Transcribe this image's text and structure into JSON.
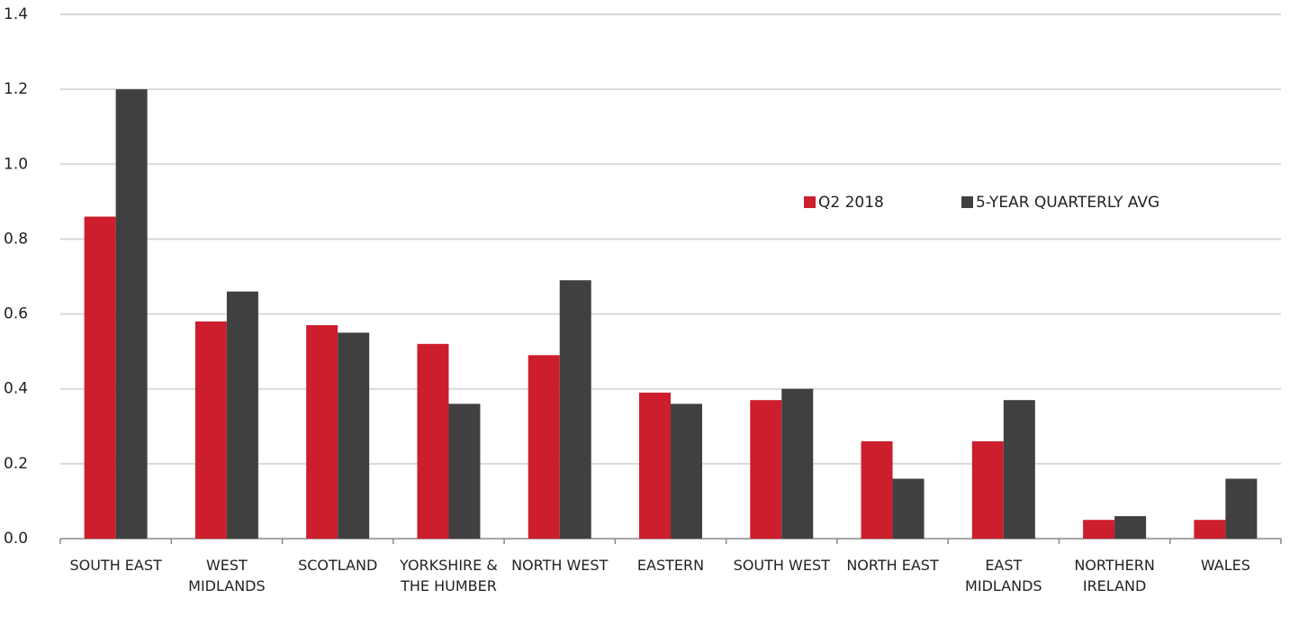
{
  "chart_data": {
    "type": "bar",
    "categories": [
      "SOUTH EAST",
      "WEST MIDLANDS",
      "SCOTLAND",
      "YORKSHIRE & THE HUMBER",
      "NORTH WEST",
      "EASTERN",
      "SOUTH WEST",
      "NORTH EAST",
      "EAST MIDLANDS",
      "NORTHERN IRELAND",
      "WALES"
    ],
    "series": [
      {
        "name": "Q2 2018",
        "color": "#cc1e2c",
        "values": [
          0.86,
          0.58,
          0.57,
          0.52,
          0.49,
          0.39,
          0.37,
          0.26,
          0.26,
          0.05,
          0.05
        ]
      },
      {
        "name": "5-YEAR QUARTERLY AVG",
        "color": "#404040",
        "values": [
          1.2,
          0.66,
          0.55,
          0.36,
          0.69,
          0.36,
          0.4,
          0.16,
          0.37,
          0.06,
          0.16
        ]
      }
    ],
    "ylim": [
      0,
      1.4
    ],
    "yticks": [
      {
        "value": 0,
        "label": "0.0"
      },
      0.2,
      0.4,
      0.6,
      0.8,
      {
        "value": 1,
        "label": "1.0"
      },
      1.2,
      1.4
    ],
    "grid": true
  }
}
